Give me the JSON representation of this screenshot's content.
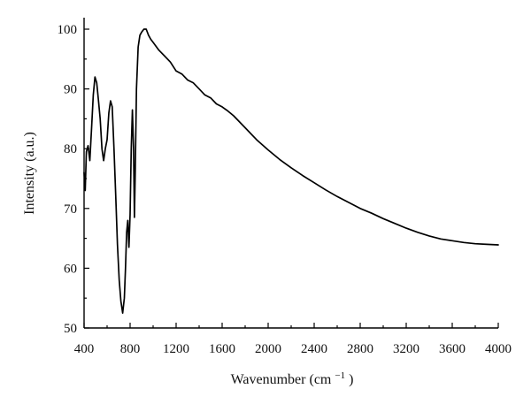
{
  "chart_data": {
    "type": "line",
    "title": "",
    "xlabel": "Wavenumber",
    "xlabel_unit_base": "(cm",
    "xlabel_unit_exp": "−1",
    "xlabel_unit_close": ")",
    "ylabel": "Intensity (a.u.)",
    "xlim": [
      400,
      4000
    ],
    "ylim": [
      50,
      102
    ],
    "xticks": [
      400,
      800,
      1200,
      1600,
      2000,
      2400,
      2800,
      3200,
      3600,
      4000
    ],
    "yticks": [
      50,
      60,
      70,
      80,
      90,
      100
    ],
    "xtick_labels": [
      "400",
      "800",
      "1200",
      "1600",
      "2000",
      "2400",
      "2800",
      "3200",
      "3600",
      "4000"
    ],
    "ytick_labels": [
      "50",
      "60",
      "70",
      "80",
      "90",
      "100"
    ],
    "grid": false,
    "legend": "none",
    "line_color": "#000000",
    "series": [
      {
        "x": [
          400,
          410,
          420,
          435,
          450,
          465,
          480,
          495,
          510,
          525,
          540,
          555,
          570,
          585,
          600,
          615,
          630,
          645,
          660,
          675,
          690,
          705,
          720,
          735,
          750,
          760,
          770,
          780,
          790,
          800,
          810,
          820,
          830,
          838,
          845,
          855,
          870,
          885,
          900,
          920,
          940,
          960,
          980,
          1000,
          1050,
          1100,
          1150,
          1200,
          1250,
          1300,
          1350,
          1400,
          1450,
          1500,
          1550,
          1600,
          1650,
          1700,
          1800,
          1900,
          2000,
          2100,
          2200,
          2300,
          2400,
          2500,
          2600,
          2700,
          2800,
          2900,
          3000,
          3100,
          3200,
          3300,
          3400,
          3500,
          3600,
          3700,
          3800,
          3900,
          4000
        ],
        "y": [
          76.0,
          73.0,
          79.5,
          80.5,
          78.0,
          83.5,
          89.0,
          92.0,
          91.0,
          88.0,
          85.0,
          80.0,
          78.0,
          80.0,
          81.5,
          86.0,
          88.0,
          87.0,
          80.0,
          72.0,
          64.0,
          58.0,
          54.5,
          52.5,
          55.0,
          60.0,
          66.0,
          68.0,
          63.5,
          69.0,
          80.0,
          86.5,
          80.0,
          68.5,
          76.0,
          90.0,
          97.0,
          99.0,
          99.5,
          100.0,
          100.0,
          99.0,
          98.3,
          97.8,
          96.5,
          95.5,
          94.5,
          93.0,
          92.5,
          91.5,
          91.0,
          90.0,
          89.0,
          88.5,
          87.5,
          87.0,
          86.3,
          85.5,
          83.5,
          81.5,
          79.8,
          78.2,
          76.8,
          75.5,
          74.3,
          73.1,
          72.0,
          71.0,
          70.0,
          69.2,
          68.3,
          67.5,
          66.7,
          66.0,
          65.4,
          64.9,
          64.6,
          64.3,
          64.1,
          64.0,
          63.9
        ]
      }
    ]
  }
}
